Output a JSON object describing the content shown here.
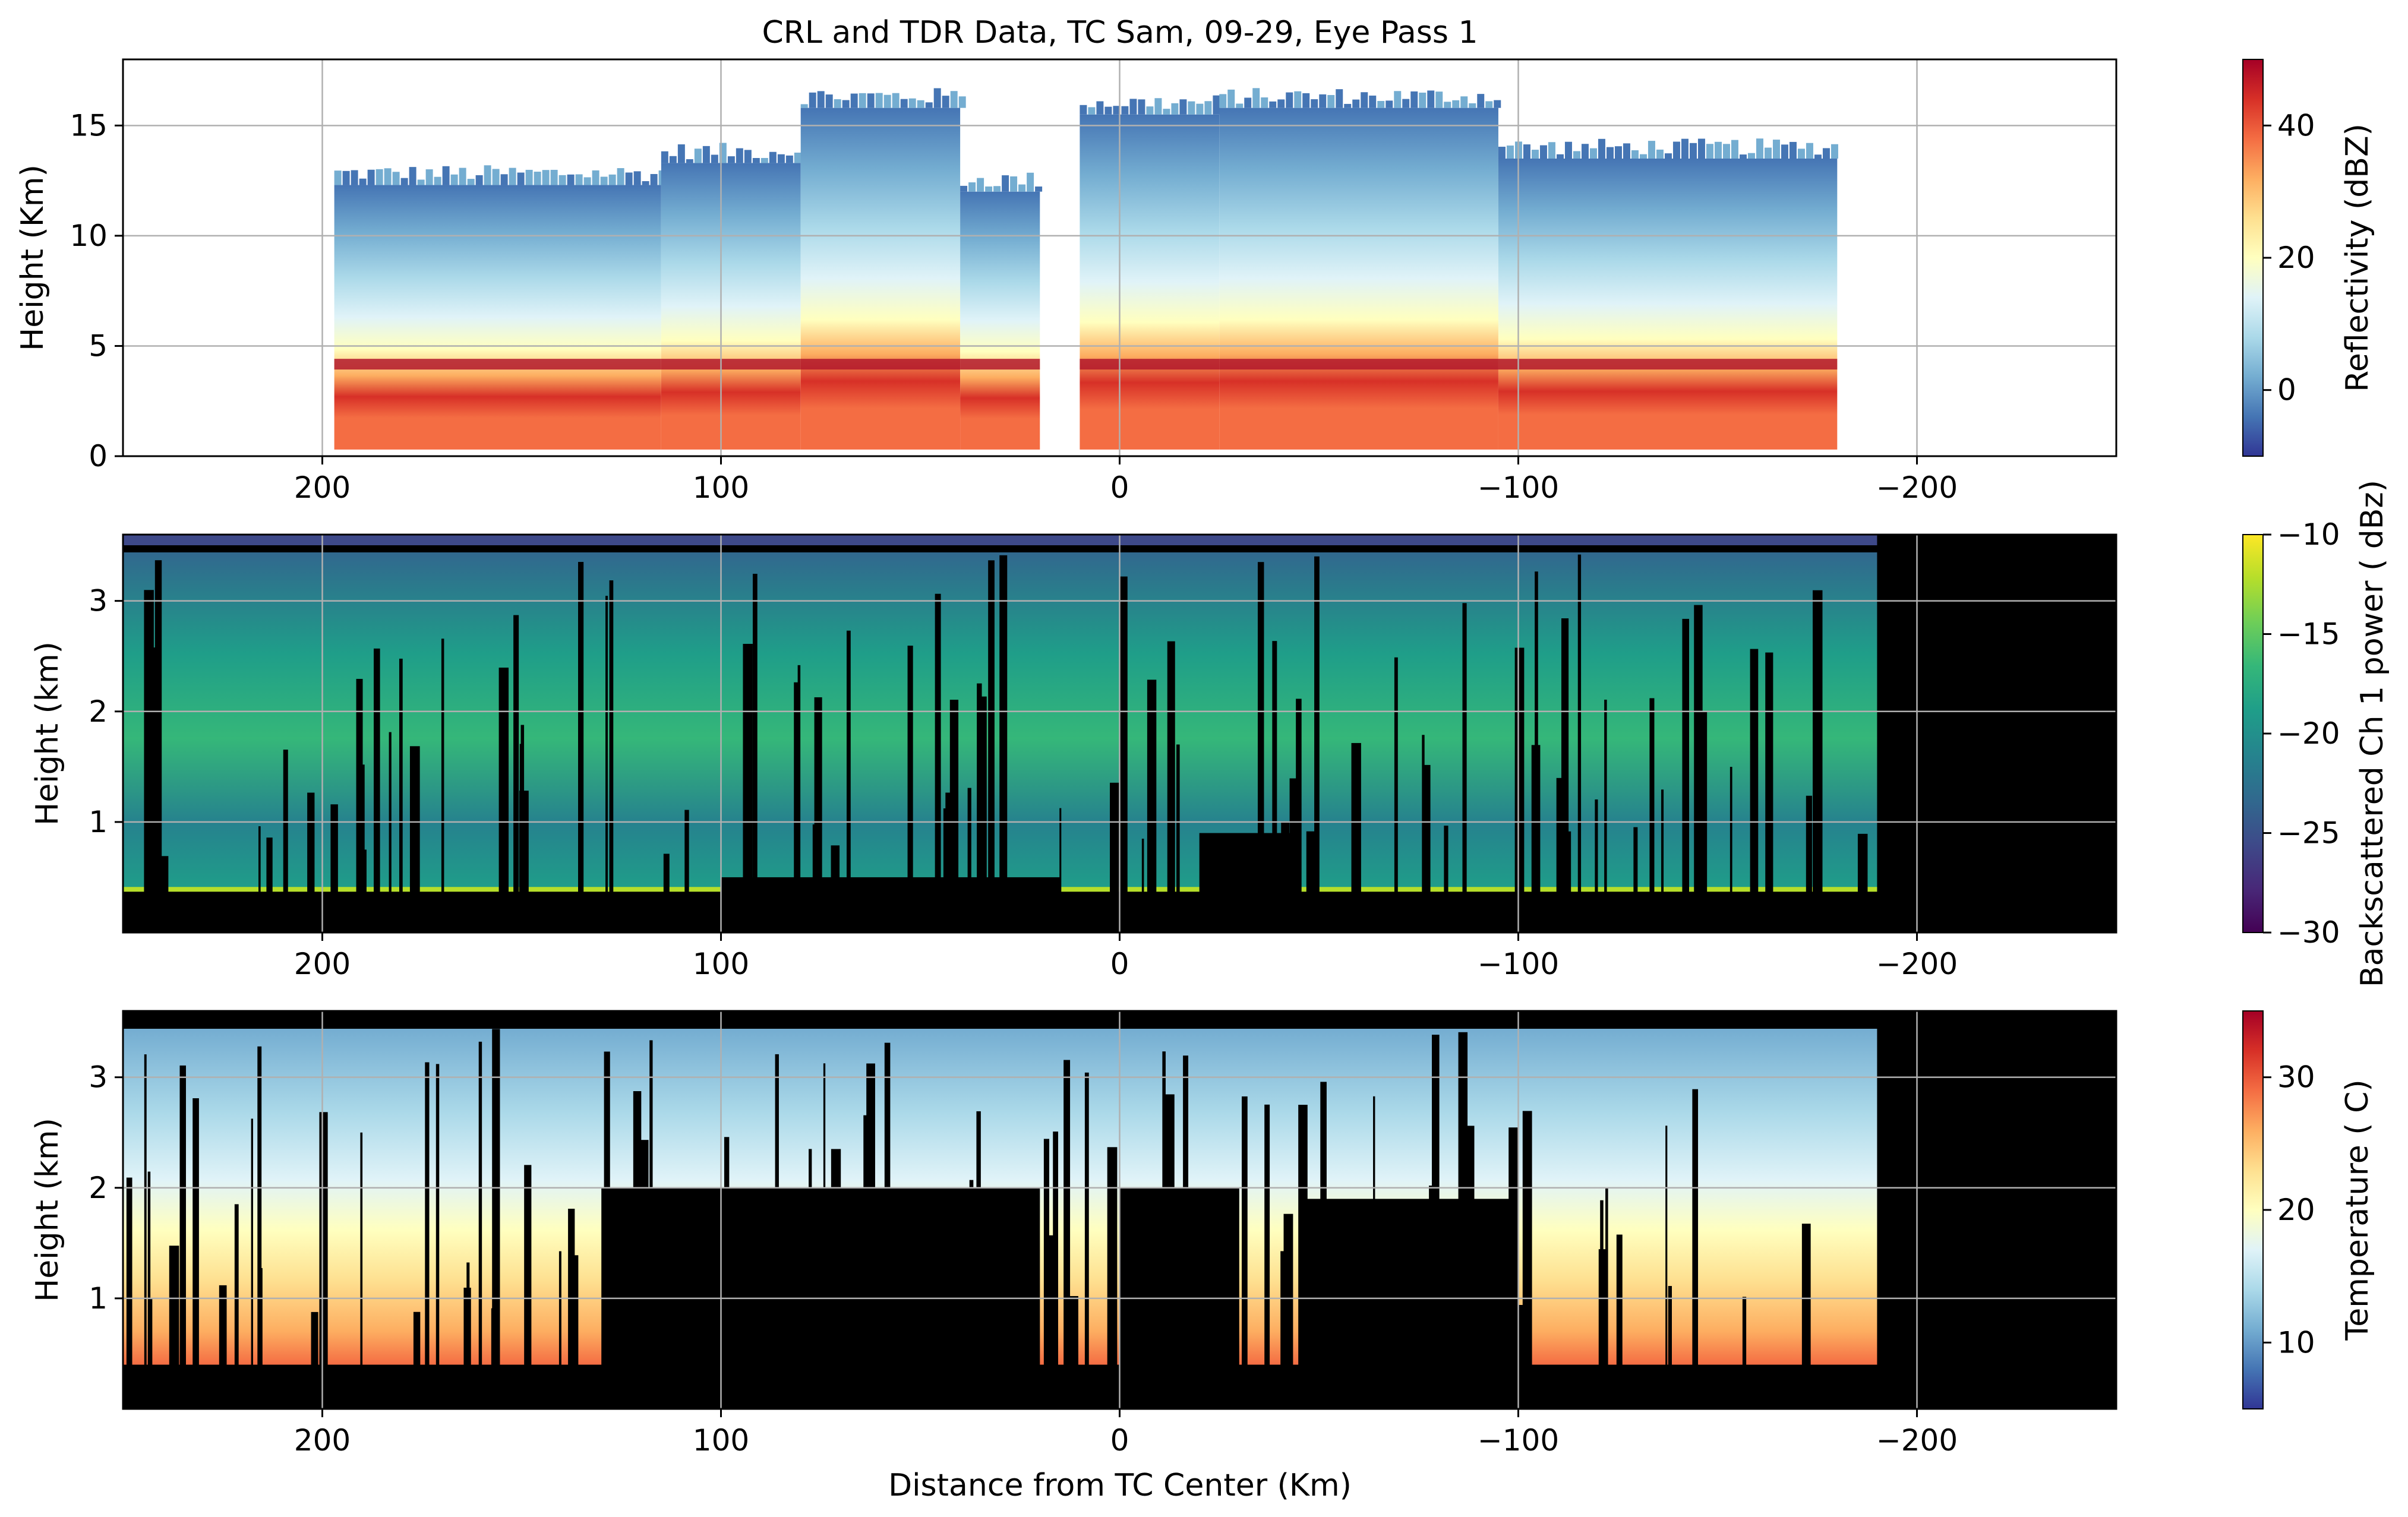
{
  "figure": {
    "title": "CRL and TDR Data, TC Sam, 09-29, Eye Pass 1",
    "xlabel": "Distance from TC Center (Km)"
  },
  "chart_data": [
    {
      "type": "heatmap",
      "name": "reflectivity",
      "ylabel": "Height (Km)",
      "xlim": [
        250,
        -250
      ],
      "ylim": [
        0,
        18
      ],
      "xticks": [
        200,
        100,
        0,
        -100,
        -200
      ],
      "xtick_labels": [
        "200",
        "100",
        "0",
        "−100",
        "−200"
      ],
      "yticks": [
        0,
        5,
        10,
        15
      ],
      "ytick_labels": [
        "0",
        "5",
        "10",
        "15"
      ],
      "grid": true,
      "colorbar": {
        "label": "Reflectivity (dBZ)",
        "range": [
          -10,
          50
        ],
        "ticks": [
          0,
          20,
          40
        ],
        "tick_labels": [
          "0",
          "20",
          "40"
        ],
        "colormap": "RdYlBu_r",
        "colors": [
          "#313695",
          "#4575b4",
          "#74add1",
          "#abd9e9",
          "#e0f3f8",
          "#ffffbf",
          "#fee090",
          "#fdae61",
          "#f46d43",
          "#d73027",
          "#a50026"
        ]
      },
      "bands": [
        {
          "x_start": 197,
          "x_end": 115,
          "top": 12.3
        },
        {
          "x_start": 115,
          "x_end": 80,
          "top": 13.3
        },
        {
          "x_start": 80,
          "x_end": 40,
          "top": 15.8
        },
        {
          "x_start": 40,
          "x_end": 20,
          "top": 12.0
        },
        {
          "x_start": 10,
          "x_end": -25,
          "top": 15.5
        },
        {
          "x_start": -25,
          "x_end": -95,
          "top": 15.8
        },
        {
          "x_start": -95,
          "x_end": -180,
          "top": 13.5
        }
      ],
      "bright_band_height": 4.2,
      "empty_regions": [
        {
          "x_start": 250,
          "x_end": 197
        },
        {
          "x_start": -180,
          "x_end": -250
        }
      ]
    },
    {
      "type": "heatmap",
      "name": "backscatter",
      "ylabel": "Height (km)",
      "xlim": [
        250,
        -250
      ],
      "ylim": [
        0,
        3.6
      ],
      "xticks": [
        200,
        100,
        0,
        -100,
        -200
      ],
      "xtick_labels": [
        "200",
        "100",
        "0",
        "−100",
        "−200"
      ],
      "yticks": [
        1,
        2,
        3
      ],
      "ytick_labels": [
        "1",
        "2",
        "3"
      ],
      "grid": true,
      "background": "#000000",
      "colorbar": {
        "label": "Backscattered Ch 1 power ( dBz)",
        "range": [
          -30,
          -10
        ],
        "ticks": [
          -30,
          -25,
          -20,
          -15,
          -10
        ],
        "tick_labels": [
          "−30",
          "−25",
          "−20",
          "−15",
          "−10"
        ],
        "colormap": "viridis",
        "colors": [
          "#440154",
          "#482878",
          "#3e4989",
          "#31688e",
          "#26828e",
          "#1f9e89",
          "#35b779",
          "#6ece58",
          "#b5de2b",
          "#fde725"
        ]
      },
      "data_extent_x": [
        250,
        -190
      ],
      "surface_height": 0.38,
      "blocked_regions": [
        {
          "x_start": 100,
          "x_end": 15,
          "bottom": 0.5
        },
        {
          "x_start": -20,
          "x_end": -45,
          "bottom": 0.9
        }
      ]
    },
    {
      "type": "heatmap",
      "name": "temperature",
      "ylabel": "Height (km)",
      "xlim": [
        250,
        -250
      ],
      "ylim": [
        0,
        3.6
      ],
      "xticks": [
        200,
        100,
        0,
        -100,
        -200
      ],
      "xtick_labels": [
        "200",
        "100",
        "0",
        "−100",
        "−200"
      ],
      "yticks": [
        1,
        2,
        3
      ],
      "ytick_labels": [
        "1",
        "2",
        "3"
      ],
      "grid": true,
      "background": "#000000",
      "colorbar": {
        "label": "Temperature ( C)",
        "range": [
          5,
          35
        ],
        "ticks": [
          10,
          20,
          30
        ],
        "tick_labels": [
          "10",
          "20",
          "30"
        ],
        "colormap": "RdYlBu_r",
        "colors": [
          "#313695",
          "#4575b4",
          "#74add1",
          "#abd9e9",
          "#e0f3f8",
          "#ffffbf",
          "#fee090",
          "#fdae61",
          "#f46d43",
          "#d73027",
          "#a50026"
        ]
      },
      "data_extent_x": [
        250,
        -190
      ],
      "surface_height": 0.4,
      "blocked_regions": [
        {
          "x_start": 130,
          "x_end": 20,
          "bottom": 2.0
        },
        {
          "x_start": 0,
          "x_end": -30,
          "bottom": 2.0
        },
        {
          "x_start": -45,
          "x_end": -100,
          "bottom": 1.9
        }
      ]
    }
  ]
}
